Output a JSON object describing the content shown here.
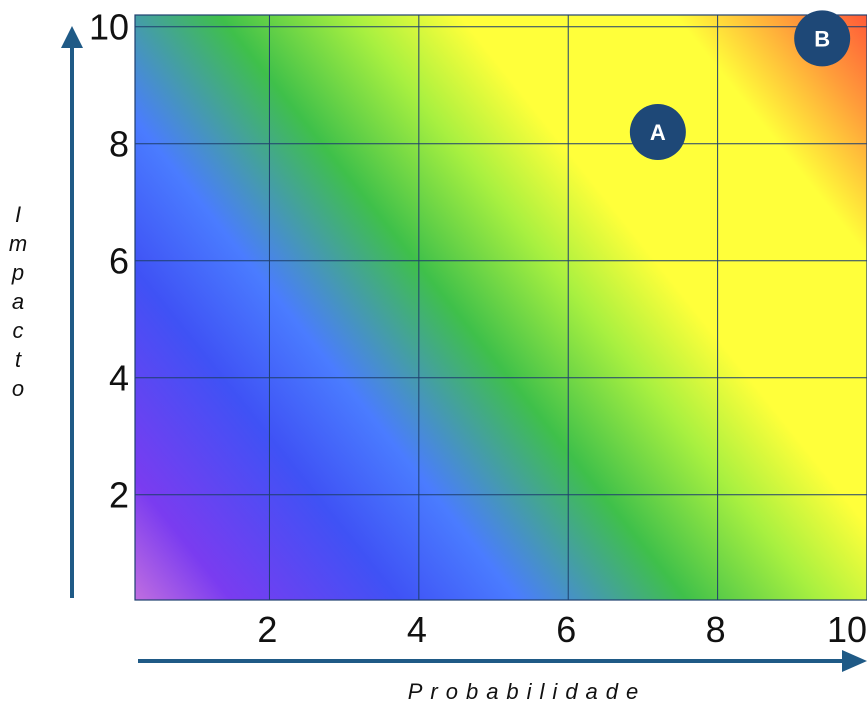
{
  "chart_data": {
    "type": "scatter",
    "title": "",
    "xlabel": "Probabilidade",
    "ylabel": "Impacto",
    "xlim": [
      0.2,
      10
    ],
    "ylim": [
      0.2,
      10.2
    ],
    "x_ticks": [
      "2",
      "4",
      "6",
      "8",
      "10"
    ],
    "x_tick_values": [
      2,
      4,
      6,
      8,
      10
    ],
    "y_ticks": [
      "2",
      "4",
      "6",
      "8",
      "10"
    ],
    "y_tick_values": [
      2,
      4,
      6,
      8,
      10
    ],
    "grid": true,
    "background": "diagonal risk gradient (low = purple/blue, mid = green/yellow, high = orange/red)",
    "gradient_colors": [
      "#c06ee0",
      "#7a3cf0",
      "#3f52f5",
      "#4a7cff",
      "#3fc04a",
      "#a8f040",
      "#ffff3a",
      "#ffff3a",
      "#ff9e3a",
      "#ff5a38"
    ],
    "points": [
      {
        "label": "A",
        "x": 7.2,
        "y": 8.2
      },
      {
        "label": "B",
        "x": 9.4,
        "y": 9.8
      }
    ],
    "point_color": "#1e4877",
    "grid_color": "#1f3f6e",
    "axis_color": "#1f5a86"
  }
}
